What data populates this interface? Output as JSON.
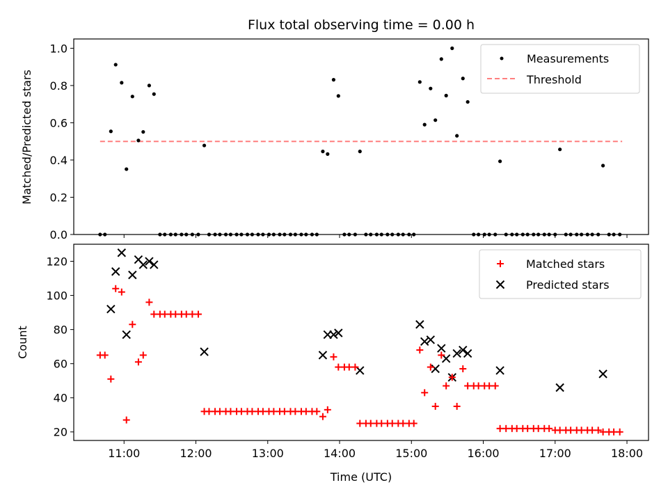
{
  "chart_data": [
    {
      "type": "scatter",
      "title": "Flux total observing time = 0.00 h",
      "xlabel": "",
      "ylabel": "Matched/Predicted stars",
      "xlim": [
        "10:18",
        "18:18"
      ],
      "ylim": [
        0.0,
        1.05
      ],
      "x_ticks": [
        "11:00",
        "12:00",
        "13:00",
        "14:00",
        "15:00",
        "16:00",
        "17:00",
        "18:00"
      ],
      "x_ticks_labeled": false,
      "y_ticks": [
        "0.0",
        "0.2",
        "0.4",
        "0.6",
        "0.8",
        "1.0"
      ],
      "legend": {
        "placement": "top-right",
        "entries": [
          "Measurements",
          "Threshold"
        ]
      },
      "grid": false,
      "colors": {
        "measurements": "#000000",
        "threshold": "#ff7f7f"
      },
      "threshold": {
        "y": 0.5,
        "x_start": "10:40",
        "x_end": "17:56",
        "style": "dashed"
      },
      "series": [
        {
          "name": "Measurements",
          "points": [
            [
              "10:40",
              0.0
            ],
            [
              "10:44",
              0.0
            ],
            [
              "10:49",
              0.554
            ],
            [
              "10:53",
              0.912
            ],
            [
              "10:58",
              0.815
            ],
            [
              "11:02",
              0.351
            ],
            [
              "11:07",
              0.741
            ],
            [
              "11:12",
              0.505
            ],
            [
              "11:16",
              0.551
            ],
            [
              "11:21",
              0.8
            ],
            [
              "11:25",
              0.754
            ],
            [
              "11:30",
              0.0
            ],
            [
              "11:34",
              0.0
            ],
            [
              "11:39",
              0.0
            ],
            [
              "11:43",
              0.0
            ],
            [
              "11:48",
              0.0
            ],
            [
              "11:52",
              0.0
            ],
            [
              "11:57",
              0.0
            ],
            [
              "12:02",
              0.0
            ],
            [
              "12:07",
              0.478
            ],
            [
              "12:11",
              0.0
            ],
            [
              "12:16",
              0.0
            ],
            [
              "12:20",
              0.0
            ],
            [
              "12:25",
              0.0
            ],
            [
              "12:29",
              0.0
            ],
            [
              "12:34",
              0.0
            ],
            [
              "12:38",
              0.0
            ],
            [
              "12:43",
              0.0
            ],
            [
              "12:47",
              0.0
            ],
            [
              "12:52",
              0.0
            ],
            [
              "12:56",
              0.0
            ],
            [
              "13:01",
              0.0
            ],
            [
              "13:05",
              0.0
            ],
            [
              "13:10",
              0.0
            ],
            [
              "13:14",
              0.0
            ],
            [
              "13:19",
              0.0
            ],
            [
              "13:23",
              0.0
            ],
            [
              "13:28",
              0.0
            ],
            [
              "13:32",
              0.0
            ],
            [
              "13:37",
              0.0
            ],
            [
              "13:41",
              0.0
            ],
            [
              "13:46",
              0.446
            ],
            [
              "13:50",
              0.432
            ],
            [
              "13:55",
              0.831
            ],
            [
              "13:59",
              0.744
            ],
            [
              "14:04",
              0.0
            ],
            [
              "14:08",
              0.0
            ],
            [
              "14:13",
              0.0
            ],
            [
              "14:17",
              0.446
            ],
            [
              "14:22",
              0.0
            ],
            [
              "14:26",
              0.0
            ],
            [
              "14:31",
              0.0
            ],
            [
              "14:35",
              0.0
            ],
            [
              "14:40",
              0.0
            ],
            [
              "14:44",
              0.0
            ],
            [
              "14:49",
              0.0
            ],
            [
              "14:53",
              0.0
            ],
            [
              "14:58",
              0.0
            ],
            [
              "15:02",
              0.0
            ],
            [
              "15:07",
              0.819
            ],
            [
              "15:11",
              0.59
            ],
            [
              "15:16",
              0.784
            ],
            [
              "15:20",
              0.614
            ],
            [
              "15:25",
              0.942
            ],
            [
              "15:29",
              0.746
            ],
            [
              "15:34",
              1.0
            ],
            [
              "15:38",
              0.53
            ],
            [
              "15:43",
              0.838
            ],
            [
              "15:47",
              0.712
            ],
            [
              "15:52",
              0.0
            ],
            [
              "15:56",
              0.0
            ],
            [
              "16:01",
              0.0
            ],
            [
              "16:05",
              0.0
            ],
            [
              "16:10",
              0.0
            ],
            [
              "16:14",
              0.393
            ],
            [
              "16:19",
              0.0
            ],
            [
              "16:24",
              0.0
            ],
            [
              "16:28",
              0.0
            ],
            [
              "16:33",
              0.0
            ],
            [
              "16:37",
              0.0
            ],
            [
              "16:42",
              0.0
            ],
            [
              "16:46",
              0.0
            ],
            [
              "16:51",
              0.0
            ],
            [
              "16:55",
              0.0
            ],
            [
              "17:00",
              0.0
            ],
            [
              "17:04",
              0.457
            ],
            [
              "17:09",
              0.0
            ],
            [
              "17:13",
              0.0
            ],
            [
              "17:18",
              0.0
            ],
            [
              "17:22",
              0.0
            ],
            [
              "17:27",
              0.0
            ],
            [
              "17:31",
              0.0
            ],
            [
              "17:36",
              0.0
            ],
            [
              "17:40",
              0.37
            ],
            [
              "17:45",
              0.0
            ],
            [
              "17:49",
              0.0
            ],
            [
              "17:54",
              0.0
            ]
          ]
        }
      ]
    },
    {
      "type": "scatter",
      "title": "",
      "xlabel": "Time (UTC)",
      "ylabel": "Count",
      "xlim": [
        "10:18",
        "18:18"
      ],
      "ylim": [
        15,
        130
      ],
      "x_ticks": [
        "11:00",
        "12:00",
        "13:00",
        "14:00",
        "15:00",
        "16:00",
        "17:00",
        "18:00"
      ],
      "y_ticks": [
        "20",
        "40",
        "60",
        "80",
        "100",
        "120"
      ],
      "legend": {
        "placement": "top-right",
        "entries": [
          "Matched stars",
          "Predicted stars"
        ]
      },
      "grid": false,
      "colors": {
        "matched": "#ff0000",
        "predicted": "#000000"
      },
      "series": [
        {
          "name": "Matched stars",
          "marker": "plus",
          "points": [
            [
              "10:40",
              65
            ],
            [
              "10:44",
              65
            ],
            [
              "10:49",
              51
            ],
            [
              "10:53",
              104
            ],
            [
              "10:58",
              102
            ],
            [
              "11:02",
              27
            ],
            [
              "11:07",
              83
            ],
            [
              "11:12",
              61
            ],
            [
              "11:16",
              65
            ],
            [
              "11:21",
              96
            ],
            [
              "11:25",
              89
            ],
            [
              "11:30",
              89
            ],
            [
              "11:34",
              89
            ],
            [
              "11:39",
              89
            ],
            [
              "11:43",
              89
            ],
            [
              "11:48",
              89
            ],
            [
              "11:52",
              89
            ],
            [
              "11:57",
              89
            ],
            [
              "12:02",
              89
            ],
            [
              "12:07",
              32
            ],
            [
              "12:11",
              32
            ],
            [
              "12:16",
              32
            ],
            [
              "12:20",
              32
            ],
            [
              "12:25",
              32
            ],
            [
              "12:29",
              32
            ],
            [
              "12:34",
              32
            ],
            [
              "12:38",
              32
            ],
            [
              "12:43",
              32
            ],
            [
              "12:47",
              32
            ],
            [
              "12:52",
              32
            ],
            [
              "12:56",
              32
            ],
            [
              "13:01",
              32
            ],
            [
              "13:05",
              32
            ],
            [
              "13:10",
              32
            ],
            [
              "13:14",
              32
            ],
            [
              "13:19",
              32
            ],
            [
              "13:23",
              32
            ],
            [
              "13:28",
              32
            ],
            [
              "13:32",
              32
            ],
            [
              "13:37",
              32
            ],
            [
              "13:41",
              32
            ],
            [
              "13:46",
              29
            ],
            [
              "13:50",
              33
            ],
            [
              "13:55",
              64
            ],
            [
              "13:59",
              58
            ],
            [
              "14:04",
              58
            ],
            [
              "14:08",
              58
            ],
            [
              "14:13",
              58
            ],
            [
              "14:17",
              25
            ],
            [
              "14:22",
              25
            ],
            [
              "14:26",
              25
            ],
            [
              "14:31",
              25
            ],
            [
              "14:35",
              25
            ],
            [
              "14:40",
              25
            ],
            [
              "14:44",
              25
            ],
            [
              "14:49",
              25
            ],
            [
              "14:53",
              25
            ],
            [
              "14:58",
              25
            ],
            [
              "15:02",
              25
            ],
            [
              "15:07",
              68
            ],
            [
              "15:11",
              43
            ],
            [
              "15:16",
              58
            ],
            [
              "15:20",
              35
            ],
            [
              "15:25",
              65
            ],
            [
              "15:29",
              47
            ],
            [
              "15:34",
              52
            ],
            [
              "15:38",
              35
            ],
            [
              "15:43",
              57
            ],
            [
              "15:47",
              47
            ],
            [
              "15:52",
              47
            ],
            [
              "15:56",
              47
            ],
            [
              "16:01",
              47
            ],
            [
              "16:05",
              47
            ],
            [
              "16:10",
              47
            ],
            [
              "16:14",
              22
            ],
            [
              "16:19",
              22
            ],
            [
              "16:24",
              22
            ],
            [
              "16:28",
              22
            ],
            [
              "16:33",
              22
            ],
            [
              "16:37",
              22
            ],
            [
              "16:42",
              22
            ],
            [
              "16:46",
              22
            ],
            [
              "16:51",
              22
            ],
            [
              "16:55",
              22
            ],
            [
              "17:00",
              21
            ],
            [
              "17:04",
              21
            ],
            [
              "17:09",
              21
            ],
            [
              "17:13",
              21
            ],
            [
              "17:18",
              21
            ],
            [
              "17:22",
              21
            ],
            [
              "17:27",
              21
            ],
            [
              "17:31",
              21
            ],
            [
              "17:36",
              21
            ],
            [
              "17:40",
              20
            ],
            [
              "17:45",
              20
            ],
            [
              "17:49",
              20
            ],
            [
              "17:54",
              20
            ]
          ]
        },
        {
          "name": "Predicted stars",
          "marker": "x",
          "points": [
            [
              "10:49",
              92
            ],
            [
              "10:53",
              114
            ],
            [
              "10:58",
              125
            ],
            [
              "11:02",
              77
            ],
            [
              "11:07",
              112
            ],
            [
              "11:12",
              121
            ],
            [
              "11:16",
              118
            ],
            [
              "11:21",
              120
            ],
            [
              "11:25",
              118
            ],
            [
              "12:07",
              67
            ],
            [
              "13:46",
              65
            ],
            [
              "13:50",
              77
            ],
            [
              "13:55",
              77
            ],
            [
              "13:59",
              78
            ],
            [
              "14:17",
              56
            ],
            [
              "15:07",
              83
            ],
            [
              "15:11",
              73
            ],
            [
              "15:16",
              74
            ],
            [
              "15:20",
              57
            ],
            [
              "15:25",
              69
            ],
            [
              "15:29",
              63
            ],
            [
              "15:34",
              52
            ],
            [
              "15:38",
              66
            ],
            [
              "15:43",
              68
            ],
            [
              "15:47",
              66
            ],
            [
              "16:14",
              56
            ],
            [
              "17:04",
              46
            ],
            [
              "17:40",
              54
            ]
          ]
        }
      ]
    }
  ]
}
